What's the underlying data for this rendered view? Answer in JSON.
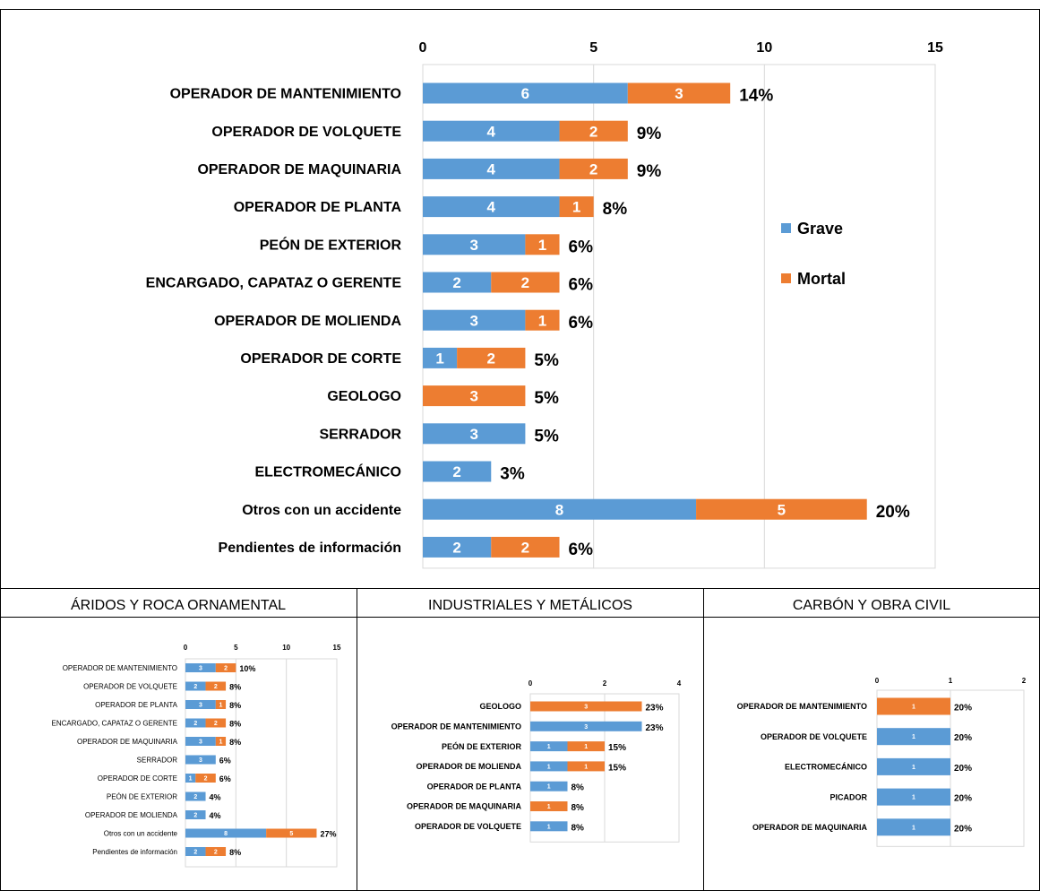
{
  "colors": {
    "grave": "#5B9BD5",
    "mortal": "#ED7D31",
    "grid": "#D9D9D9",
    "border": "#000000"
  },
  "header_text": "",
  "panel_titles": [
    "ÁRIDOS Y ROCA ORNAMENTAL",
    "INDUSTRIALES Y METÁLICOS",
    "CARBÓN Y OBRA CIVIL"
  ],
  "chart_data": [
    {
      "type": "bar",
      "orientation": "horizontal",
      "stacked": true,
      "legend_position": "right",
      "xlim": [
        0,
        15
      ],
      "xticks": [
        0,
        5,
        10,
        15
      ],
      "grid": true,
      "categories": [
        "OPERADOR DE MANTENIMIENTO",
        "OPERADOR DE VOLQUETE",
        "OPERADOR DE MAQUINARIA",
        "OPERADOR DE PLANTA",
        "PEÓN DE EXTERIOR",
        "ENCARGADO, CAPATAZ O GERENTE",
        "OPERADOR DE MOLIENDA",
        "OPERADOR DE CORTE",
        "GEOLOGO",
        "SERRADOR",
        "ELECTROMECÁNICO",
        "Otros con un accidente",
        "Pendientes de información"
      ],
      "series": [
        {
          "name": "Grave",
          "values": [
            6,
            4,
            4,
            4,
            3,
            2,
            3,
            1,
            0,
            3,
            2,
            8,
            2
          ]
        },
        {
          "name": "Mortal",
          "values": [
            3,
            2,
            2,
            1,
            1,
            2,
            1,
            2,
            3,
            0,
            0,
            5,
            2
          ]
        }
      ],
      "percent_labels": [
        "14%",
        "9%",
        "9%",
        "8%",
        "6%",
        "6%",
        "6%",
        "5%",
        "5%",
        "5%",
        "3%",
        "20%",
        "6%"
      ]
    },
    {
      "type": "bar",
      "orientation": "horizontal",
      "stacked": true,
      "title": "ÁRIDOS Y ROCA ORNAMENTAL",
      "xlim": [
        0,
        15
      ],
      "xticks": [
        0,
        5,
        10,
        15
      ],
      "grid": true,
      "categories": [
        "OPERADOR DE MANTENIMIENTO",
        "OPERADOR DE VOLQUETE",
        "OPERADOR DE PLANTA",
        "ENCARGADO, CAPATAZ O GERENTE",
        "OPERADOR DE MAQUINARIA",
        "SERRADOR",
        "OPERADOR DE CORTE",
        "PEÓN DE EXTERIOR",
        "OPERADOR DE MOLIENDA",
        "Otros con un accidente",
        "Pendientes de información"
      ],
      "series": [
        {
          "name": "Grave",
          "values": [
            3,
            2,
            3,
            2,
            3,
            3,
            1,
            2,
            2,
            8,
            2
          ]
        },
        {
          "name": "Mortal",
          "values": [
            2,
            2,
            1,
            2,
            1,
            0,
            2,
            0,
            0,
            5,
            2
          ]
        }
      ],
      "percent_labels": [
        "10%",
        "8%",
        "8%",
        "8%",
        "8%",
        "6%",
        "6%",
        "4%",
        "4%",
        "27%",
        "8%"
      ]
    },
    {
      "type": "bar",
      "orientation": "horizontal",
      "stacked": true,
      "title": "INDUSTRIALES Y METÁLICOS",
      "xlim": [
        0,
        4
      ],
      "xticks": [
        0,
        2,
        4
      ],
      "grid": true,
      "categories": [
        "GEOLOGO",
        "OPERADOR DE MANTENIMIENTO",
        "PEÓN DE EXTERIOR",
        "OPERADOR DE MOLIENDA",
        "OPERADOR DE PLANTA",
        "OPERADOR DE MAQUINARIA",
        "OPERADOR DE VOLQUETE"
      ],
      "series": [
        {
          "name": "Grave",
          "values": [
            0,
            3,
            1,
            1,
            1,
            0,
            1
          ]
        },
        {
          "name": "Mortal",
          "values": [
            3,
            0,
            1,
            1,
            0,
            1,
            0
          ]
        }
      ],
      "percent_labels": [
        "23%",
        "23%",
        "15%",
        "15%",
        "8%",
        "8%",
        "8%"
      ]
    },
    {
      "type": "bar",
      "orientation": "horizontal",
      "stacked": true,
      "title": "CARBÓN Y OBRA CIVIL",
      "xlim": [
        0,
        2
      ],
      "xticks": [
        0,
        1,
        2
      ],
      "grid": true,
      "categories": [
        "OPERADOR DE MANTENIMIENTO",
        "OPERADOR DE VOLQUETE",
        "ELECTROMECÁNICO",
        "PICADOR",
        "OPERADOR DE MAQUINARIA"
      ],
      "series": [
        {
          "name": "Grave",
          "values": [
            0,
            1,
            1,
            1,
            1
          ]
        },
        {
          "name": "Mortal",
          "values": [
            1,
            0,
            0,
            0,
            0
          ]
        }
      ],
      "percent_labels": [
        "20%",
        "20%",
        "20%",
        "20%",
        "20%"
      ]
    }
  ]
}
